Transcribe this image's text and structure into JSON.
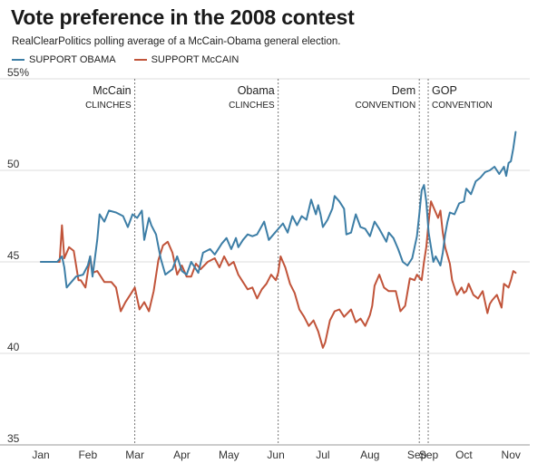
{
  "title": "Vote preference in the 2008 contest",
  "subtitle": "RealClearPolitics polling average of a McCain-Obama general election.",
  "legend": [
    {
      "label": "SUPPORT OBAMA",
      "color": "#3d7ea6"
    },
    {
      "label": "SUPPORT McCAIN",
      "color": "#c1543a"
    }
  ],
  "chart_data": {
    "type": "line",
    "title": "Vote preference in the 2008 contest",
    "subtitle": "RealClearPolitics polling average of a McCain-Obama general election.",
    "x_unit": "month (2008)",
    "x_ticks": [
      "Jan",
      "Feb",
      "Mar",
      "Apr",
      "May",
      "Jun",
      "Jul",
      "Aug",
      "Sep",
      "Sep",
      "Oct",
      "Nov"
    ],
    "x_tick_positions": [
      1.0,
      2.0,
      3.0,
      4.0,
      5.0,
      6.0,
      7.0,
      8.0,
      9.0,
      9.25,
      10.0,
      11.0
    ],
    "xlim": [
      1.0,
      11.15
    ],
    "y_ticks": [
      "35",
      "40",
      "45",
      "50",
      "55%"
    ],
    "y_tick_values": [
      35,
      40,
      45,
      50,
      55
    ],
    "ylim": [
      35,
      55
    ],
    "grid": "horizontal",
    "legend_position": "top-left",
    "series": [
      {
        "name": "SUPPORT OBAMA",
        "color": "#3d7ea6",
        "points": [
          [
            1.0,
            45.0
          ],
          [
            1.35,
            45.0
          ],
          [
            1.45,
            45.3
          ],
          [
            1.5,
            44.7
          ],
          [
            1.55,
            43.6
          ],
          [
            1.65,
            43.9
          ],
          [
            1.75,
            44.2
          ],
          [
            1.9,
            44.3
          ],
          [
            2.0,
            44.8
          ],
          [
            2.05,
            45.3
          ],
          [
            2.1,
            44.2
          ],
          [
            2.2,
            46.2
          ],
          [
            2.25,
            47.6
          ],
          [
            2.35,
            47.2
          ],
          [
            2.45,
            47.8
          ],
          [
            2.6,
            47.7
          ],
          [
            2.75,
            47.5
          ],
          [
            2.85,
            46.9
          ],
          [
            2.95,
            47.6
          ],
          [
            3.05,
            47.4
          ],
          [
            3.15,
            47.8
          ],
          [
            3.2,
            46.2
          ],
          [
            3.3,
            47.4
          ],
          [
            3.35,
            47.0
          ],
          [
            3.45,
            46.5
          ],
          [
            3.55,
            45.2
          ],
          [
            3.65,
            44.3
          ],
          [
            3.8,
            44.6
          ],
          [
            3.9,
            45.3
          ],
          [
            4.0,
            44.5
          ],
          [
            4.1,
            44.3
          ],
          [
            4.2,
            45.0
          ],
          [
            4.35,
            44.4
          ],
          [
            4.45,
            45.5
          ],
          [
            4.6,
            45.7
          ],
          [
            4.7,
            45.4
          ],
          [
            4.85,
            46.0
          ],
          [
            4.95,
            46.3
          ],
          [
            5.05,
            45.7
          ],
          [
            5.15,
            46.3
          ],
          [
            5.2,
            45.8
          ],
          [
            5.3,
            46.2
          ],
          [
            5.4,
            46.5
          ],
          [
            5.5,
            46.4
          ],
          [
            5.6,
            46.5
          ],
          [
            5.75,
            47.2
          ],
          [
            5.85,
            46.2
          ],
          [
            5.95,
            46.5
          ],
          [
            6.05,
            46.8
          ],
          [
            6.15,
            47.1
          ],
          [
            6.25,
            46.6
          ],
          [
            6.35,
            47.5
          ],
          [
            6.45,
            47.0
          ],
          [
            6.55,
            47.5
          ],
          [
            6.65,
            47.3
          ],
          [
            6.75,
            48.4
          ],
          [
            6.85,
            47.6
          ],
          [
            6.9,
            48.1
          ],
          [
            6.95,
            47.6
          ],
          [
            7.0,
            46.9
          ],
          [
            7.1,
            47.3
          ],
          [
            7.2,
            47.9
          ],
          [
            7.25,
            48.6
          ],
          [
            7.35,
            48.3
          ],
          [
            7.45,
            47.9
          ],
          [
            7.5,
            46.5
          ],
          [
            7.6,
            46.6
          ],
          [
            7.7,
            47.6
          ],
          [
            7.8,
            46.9
          ],
          [
            7.9,
            46.8
          ],
          [
            8.0,
            46.4
          ],
          [
            8.1,
            47.2
          ],
          [
            8.2,
            46.8
          ],
          [
            8.35,
            46.1
          ],
          [
            8.4,
            46.6
          ],
          [
            8.5,
            46.3
          ],
          [
            8.6,
            45.7
          ],
          [
            8.7,
            45.0
          ],
          [
            8.8,
            44.8
          ],
          [
            8.9,
            45.2
          ],
          [
            9.0,
            46.4
          ],
          [
            9.05,
            47.6
          ],
          [
            9.1,
            48.9
          ],
          [
            9.15,
            49.2
          ],
          [
            9.2,
            48.3
          ],
          [
            9.25,
            46.6
          ],
          [
            9.3,
            45.8
          ],
          [
            9.35,
            45.0
          ],
          [
            9.4,
            45.3
          ],
          [
            9.5,
            44.8
          ],
          [
            9.55,
            45.5
          ],
          [
            9.6,
            46.5
          ],
          [
            9.65,
            47.2
          ],
          [
            9.7,
            47.7
          ],
          [
            9.8,
            47.6
          ],
          [
            9.9,
            48.2
          ],
          [
            10.0,
            48.3
          ],
          [
            10.05,
            49.0
          ],
          [
            10.15,
            48.7
          ],
          [
            10.25,
            49.4
          ],
          [
            10.35,
            49.6
          ],
          [
            10.45,
            49.9
          ],
          [
            10.55,
            50.0
          ],
          [
            10.65,
            50.2
          ],
          [
            10.75,
            49.8
          ],
          [
            10.8,
            50.0
          ],
          [
            10.85,
            50.2
          ],
          [
            10.9,
            49.7
          ],
          [
            10.95,
            50.4
          ],
          [
            11.0,
            50.5
          ],
          [
            11.05,
            51.2
          ],
          [
            11.1,
            52.1
          ]
        ]
      },
      {
        "name": "SUPPORT McCAIN",
        "color": "#c1543a",
        "points": [
          [
            1.0,
            45.0
          ],
          [
            1.4,
            45.0
          ],
          [
            1.45,
            47.0
          ],
          [
            1.5,
            45.2
          ],
          [
            1.6,
            45.8
          ],
          [
            1.7,
            45.6
          ],
          [
            1.8,
            44.0
          ],
          [
            1.85,
            44.0
          ],
          [
            1.95,
            43.6
          ],
          [
            2.05,
            45.3
          ],
          [
            2.1,
            44.4
          ],
          [
            2.2,
            44.5
          ],
          [
            2.35,
            43.9
          ],
          [
            2.5,
            43.9
          ],
          [
            2.6,
            43.6
          ],
          [
            2.7,
            42.3
          ],
          [
            2.8,
            42.8
          ],
          [
            2.9,
            43.2
          ],
          [
            3.0,
            43.6
          ],
          [
            3.1,
            42.4
          ],
          [
            3.2,
            42.8
          ],
          [
            3.3,
            42.3
          ],
          [
            3.4,
            43.4
          ],
          [
            3.5,
            45.1
          ],
          [
            3.6,
            45.9
          ],
          [
            3.7,
            46.1
          ],
          [
            3.8,
            45.5
          ],
          [
            3.9,
            44.3
          ],
          [
            4.0,
            44.8
          ],
          [
            4.1,
            44.2
          ],
          [
            4.2,
            44.2
          ],
          [
            4.3,
            44.9
          ],
          [
            4.4,
            44.6
          ],
          [
            4.55,
            45.0
          ],
          [
            4.7,
            45.2
          ],
          [
            4.8,
            44.7
          ],
          [
            4.9,
            45.3
          ],
          [
            5.0,
            44.8
          ],
          [
            5.1,
            45.0
          ],
          [
            5.2,
            44.3
          ],
          [
            5.3,
            43.9
          ],
          [
            5.4,
            43.5
          ],
          [
            5.5,
            43.6
          ],
          [
            5.6,
            43.0
          ],
          [
            5.7,
            43.5
          ],
          [
            5.8,
            43.8
          ],
          [
            5.9,
            44.3
          ],
          [
            6.0,
            44.0
          ],
          [
            6.05,
            44.4
          ],
          [
            6.1,
            45.3
          ],
          [
            6.2,
            44.7
          ],
          [
            6.3,
            43.8
          ],
          [
            6.4,
            43.3
          ],
          [
            6.5,
            42.4
          ],
          [
            6.6,
            42.0
          ],
          [
            6.7,
            41.5
          ],
          [
            6.8,
            41.8
          ],
          [
            6.9,
            41.2
          ],
          [
            7.0,
            40.3
          ],
          [
            7.05,
            40.6
          ],
          [
            7.15,
            41.8
          ],
          [
            7.25,
            42.3
          ],
          [
            7.35,
            42.4
          ],
          [
            7.45,
            42.0
          ],
          [
            7.6,
            42.4
          ],
          [
            7.7,
            41.7
          ],
          [
            7.8,
            41.9
          ],
          [
            7.9,
            41.5
          ],
          [
            8.0,
            42.1
          ],
          [
            8.05,
            42.6
          ],
          [
            8.1,
            43.7
          ],
          [
            8.2,
            44.3
          ],
          [
            8.3,
            43.6
          ],
          [
            8.4,
            43.4
          ],
          [
            8.55,
            43.4
          ],
          [
            8.65,
            42.3
          ],
          [
            8.75,
            42.6
          ],
          [
            8.85,
            44.1
          ],
          [
            8.95,
            44.0
          ],
          [
            9.0,
            44.3
          ],
          [
            9.1,
            44.0
          ],
          [
            9.15,
            45.0
          ],
          [
            9.2,
            45.8
          ],
          [
            9.25,
            47.2
          ],
          [
            9.3,
            48.3
          ],
          [
            9.35,
            48.0
          ],
          [
            9.45,
            47.4
          ],
          [
            9.5,
            47.8
          ],
          [
            9.55,
            46.6
          ],
          [
            9.6,
            45.8
          ],
          [
            9.7,
            44.9
          ],
          [
            9.75,
            44.0
          ],
          [
            9.85,
            43.2
          ],
          [
            9.95,
            43.6
          ],
          [
            10.0,
            43.3
          ],
          [
            10.05,
            43.4
          ],
          [
            10.1,
            43.8
          ],
          [
            10.2,
            43.2
          ],
          [
            10.3,
            43.0
          ],
          [
            10.4,
            43.4
          ],
          [
            10.5,
            42.2
          ],
          [
            10.55,
            42.7
          ],
          [
            10.6,
            42.9
          ],
          [
            10.7,
            43.2
          ],
          [
            10.8,
            42.5
          ],
          [
            10.85,
            43.8
          ],
          [
            10.95,
            43.6
          ],
          [
            11.0,
            44.0
          ],
          [
            11.05,
            44.5
          ],
          [
            11.1,
            44.4
          ]
        ]
      }
    ],
    "annotations": [
      {
        "x": 3.0,
        "line1": "McCain",
        "line2": "CLINCHES"
      },
      {
        "x": 6.05,
        "line1": "Obama",
        "line2": "CLINCHES"
      },
      {
        "x": 9.05,
        "line1": "Dem",
        "line2": "CONVENTION"
      },
      {
        "x": 9.24,
        "line1": "GOP",
        "line2": "CONVENTION"
      }
    ]
  }
}
